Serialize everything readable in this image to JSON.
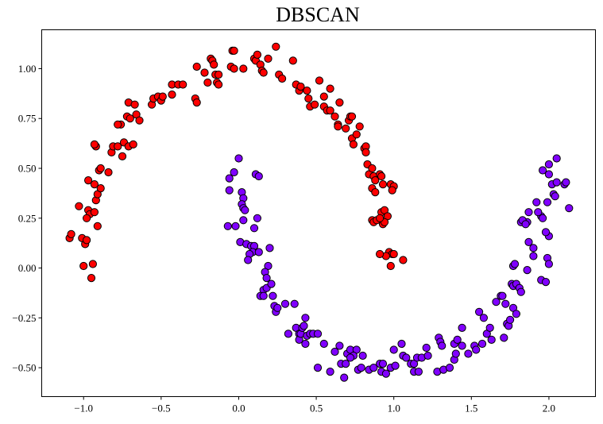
{
  "chart_data": {
    "type": "scatter",
    "title": "DBSCAN",
    "xlabel": "",
    "ylabel": "",
    "xlim": [
      -1.27,
      2.3
    ],
    "ylim": [
      -0.645,
      1.195
    ],
    "grid": false,
    "legend": null,
    "x_ticks": [
      -1.0,
      -0.5,
      0.0,
      0.5,
      1.0,
      1.5,
      2.0
    ],
    "x_tick_labels": [
      "−1.0",
      "−0.5",
      "0.0",
      "0.5",
      "1.0",
      "1.5",
      "2.0"
    ],
    "y_ticks": [
      -0.5,
      -0.25,
      0.0,
      0.25,
      0.5,
      0.75,
      1.0
    ],
    "y_tick_labels": [
      "−0.50",
      "−0.25",
      "0.00",
      "0.25",
      "0.50",
      "0.75",
      "1.00"
    ],
    "colors": {
      "cluster_0": "#ff0000",
      "cluster_1": "#8000ff",
      "edge": "#000000"
    },
    "series": [
      {
        "name": "cluster_0",
        "color": "#ff0000",
        "points": [
          [
            -1.09,
            0.15
          ],
          [
            -1.08,
            0.17
          ],
          [
            -1.03,
            0.31
          ],
          [
            -1.01,
            0.15
          ],
          [
            -0.99,
            0.12
          ],
          [
            -0.98,
            0.14
          ],
          [
            -0.97,
            0.29
          ],
          [
            -0.96,
            0.27
          ],
          [
            -0.98,
            0.25
          ],
          [
            -0.93,
            0.28
          ],
          [
            -0.92,
            0.34
          ],
          [
            -0.91,
            0.37
          ],
          [
            -0.93,
            0.42
          ],
          [
            -0.91,
            0.21
          ],
          [
            -1.0,
            0.01
          ],
          [
            -0.94,
            0.02
          ],
          [
            -0.95,
            -0.05
          ],
          [
            -0.97,
            0.44
          ],
          [
            -0.9,
            0.49
          ],
          [
            -0.89,
            0.5
          ],
          [
            -0.84,
            0.48
          ],
          [
            -0.89,
            0.4
          ],
          [
            -0.92,
            0.61
          ],
          [
            -0.93,
            0.62
          ],
          [
            -0.82,
            0.58
          ],
          [
            -0.81,
            0.61
          ],
          [
            -0.78,
            0.61
          ],
          [
            -0.75,
            0.56
          ],
          [
            -0.74,
            0.63
          ],
          [
            -0.71,
            0.61
          ],
          [
            -0.68,
            0.62
          ],
          [
            -0.76,
            0.72
          ],
          [
            -0.72,
            0.76
          ],
          [
            -0.7,
            0.75
          ],
          [
            -0.66,
            0.77
          ],
          [
            -0.78,
            0.72
          ],
          [
            -0.71,
            0.83
          ],
          [
            -0.67,
            0.82
          ],
          [
            -0.64,
            0.74
          ],
          [
            -0.56,
            0.82
          ],
          [
            -0.55,
            0.85
          ],
          [
            -0.52,
            0.86
          ],
          [
            -0.5,
            0.84
          ],
          [
            -0.49,
            0.86
          ],
          [
            -0.43,
            0.92
          ],
          [
            -0.43,
            0.87
          ],
          [
            -0.39,
            0.92
          ],
          [
            -0.36,
            0.92
          ],
          [
            -0.28,
            0.85
          ],
          [
            -0.27,
            0.83
          ],
          [
            -0.27,
            1.01
          ],
          [
            -0.22,
            0.98
          ],
          [
            -0.2,
            0.93
          ],
          [
            -0.18,
            1.05
          ],
          [
            -0.17,
            1.04
          ],
          [
            -0.16,
            1.02
          ],
          [
            -0.15,
            0.97
          ],
          [
            -0.14,
            0.93
          ],
          [
            -0.13,
            0.97
          ],
          [
            -0.13,
            0.92
          ],
          [
            -0.05,
            1.01
          ],
          [
            -0.03,
            1.0
          ],
          [
            -0.04,
            1.09
          ],
          [
            -0.03,
            1.09
          ],
          [
            0.03,
            1.0
          ],
          [
            0.1,
            1.05
          ],
          [
            0.11,
            1.04
          ],
          [
            0.12,
            1.07
          ],
          [
            0.14,
            1.02
          ],
          [
            0.15,
            0.99
          ],
          [
            0.16,
            0.98
          ],
          [
            0.19,
            1.05
          ],
          [
            0.24,
            1.11
          ],
          [
            0.26,
            0.97
          ],
          [
            0.28,
            0.95
          ],
          [
            0.35,
            1.04
          ],
          [
            0.37,
            0.92
          ],
          [
            0.39,
            0.89
          ],
          [
            0.4,
            0.91
          ],
          [
            0.44,
            0.89
          ],
          [
            0.45,
            0.85
          ],
          [
            0.46,
            0.81
          ],
          [
            0.49,
            0.82
          ],
          [
            0.52,
            0.94
          ],
          [
            0.55,
            0.81
          ],
          [
            0.55,
            0.86
          ],
          [
            0.57,
            0.79
          ],
          [
            0.59,
            0.79
          ],
          [
            0.59,
            0.9
          ],
          [
            0.62,
            0.76
          ],
          [
            0.64,
            0.72
          ],
          [
            0.64,
            0.71
          ],
          [
            0.65,
            0.83
          ],
          [
            0.69,
            0.7
          ],
          [
            0.71,
            0.74
          ],
          [
            0.72,
            0.76
          ],
          [
            0.73,
            0.76
          ],
          [
            0.73,
            0.65
          ],
          [
            0.74,
            0.62
          ],
          [
            0.76,
            0.67
          ],
          [
            0.78,
            0.71
          ],
          [
            0.81,
            0.6
          ],
          [
            0.82,
            0.61
          ],
          [
            0.82,
            0.58
          ],
          [
            0.83,
            0.52
          ],
          [
            0.84,
            0.47
          ],
          [
            0.86,
            0.5
          ],
          [
            0.87,
            0.46
          ],
          [
            0.86,
            0.4
          ],
          [
            0.88,
            0.38
          ],
          [
            0.88,
            0.44
          ],
          [
            0.91,
            0.47
          ],
          [
            0.92,
            0.46
          ],
          [
            0.93,
            0.42
          ],
          [
            0.92,
            0.28
          ],
          [
            0.93,
            0.22
          ],
          [
            0.94,
            0.29
          ],
          [
            0.96,
            0.26
          ],
          [
            0.94,
            0.23
          ],
          [
            0.98,
            0.42
          ],
          [
            1.0,
            0.41
          ],
          [
            0.99,
            0.39
          ],
          [
            0.86,
            0.24
          ],
          [
            0.87,
            0.23
          ],
          [
            0.89,
            0.24
          ],
          [
            0.91,
            0.25
          ],
          [
            0.97,
            0.08
          ],
          [
            0.99,
            0.07
          ],
          [
            1.0,
            0.07
          ],
          [
            0.98,
            0.01
          ],
          [
            1.06,
            0.04
          ],
          [
            0.95,
            0.06
          ],
          [
            0.91,
            0.07
          ]
        ]
      },
      {
        "name": "cluster_1",
        "color": "#8000ff",
        "points": [
          [
            0.0,
            0.55
          ],
          [
            -0.03,
            0.48
          ],
          [
            -0.06,
            0.45
          ],
          [
            0.11,
            0.47
          ],
          [
            0.13,
            0.46
          ],
          [
            -0.06,
            0.39
          ],
          [
            0.02,
            0.38
          ],
          [
            0.03,
            0.35
          ],
          [
            0.02,
            0.32
          ],
          [
            0.03,
            0.3
          ],
          [
            0.04,
            0.29
          ],
          [
            0.03,
            0.24
          ],
          [
            -0.07,
            0.21
          ],
          [
            -0.02,
            0.21
          ],
          [
            0.1,
            0.2
          ],
          [
            0.12,
            0.25
          ],
          [
            0.01,
            0.13
          ],
          [
            0.05,
            0.12
          ],
          [
            0.08,
            0.11
          ],
          [
            0.1,
            0.11
          ],
          [
            0.09,
            0.08
          ],
          [
            0.07,
            0.07
          ],
          [
            0.13,
            0.08
          ],
          [
            0.06,
            0.04
          ],
          [
            0.19,
            0.01
          ],
          [
            0.2,
            0.1
          ],
          [
            0.17,
            -0.02
          ],
          [
            0.18,
            -0.05
          ],
          [
            0.16,
            -0.11
          ],
          [
            0.14,
            -0.14
          ],
          [
            0.18,
            -0.1
          ],
          [
            0.21,
            -0.08
          ],
          [
            0.22,
            -0.14
          ],
          [
            0.16,
            -0.14
          ],
          [
            0.23,
            -0.19
          ],
          [
            0.24,
            -0.22
          ],
          [
            0.25,
            -0.2
          ],
          [
            0.3,
            -0.18
          ],
          [
            0.36,
            -0.18
          ],
          [
            0.32,
            -0.33
          ],
          [
            0.37,
            -0.3
          ],
          [
            0.39,
            -0.33
          ],
          [
            0.39,
            -0.36
          ],
          [
            0.4,
            -0.33
          ],
          [
            0.41,
            -0.3
          ],
          [
            0.42,
            -0.29
          ],
          [
            0.43,
            -0.25
          ],
          [
            0.43,
            -0.38
          ],
          [
            0.44,
            -0.34
          ],
          [
            0.46,
            -0.33
          ],
          [
            0.48,
            -0.33
          ],
          [
            0.51,
            -0.33
          ],
          [
            0.55,
            -0.38
          ],
          [
            0.51,
            -0.5
          ],
          [
            0.59,
            -0.52
          ],
          [
            0.65,
            -0.39
          ],
          [
            0.62,
            -0.42
          ],
          [
            0.66,
            -0.48
          ],
          [
            0.69,
            -0.48
          ],
          [
            0.7,
            -0.43
          ],
          [
            0.72,
            -0.41
          ],
          [
            0.68,
            -0.55
          ],
          [
            0.76,
            -0.41
          ],
          [
            0.8,
            -0.44
          ],
          [
            0.74,
            -0.44
          ],
          [
            0.72,
            -0.45
          ],
          [
            0.77,
            -0.51
          ],
          [
            0.79,
            -0.5
          ],
          [
            0.84,
            -0.51
          ],
          [
            0.87,
            -0.5
          ],
          [
            0.91,
            -0.48
          ],
          [
            0.92,
            -0.52
          ],
          [
            0.93,
            -0.48
          ],
          [
            0.95,
            -0.53
          ],
          [
            0.98,
            -0.5
          ],
          [
            1.0,
            -0.41
          ],
          [
            1.01,
            -0.49
          ],
          [
            1.05,
            -0.38
          ],
          [
            1.06,
            -0.44
          ],
          [
            1.08,
            -0.45
          ],
          [
            1.11,
            -0.48
          ],
          [
            1.13,
            -0.52
          ],
          [
            1.13,
            -0.48
          ],
          [
            1.15,
            -0.45
          ],
          [
            1.16,
            -0.52
          ],
          [
            1.18,
            -0.45
          ],
          [
            1.21,
            -0.4
          ],
          [
            1.22,
            -0.44
          ],
          [
            1.28,
            -0.52
          ],
          [
            1.29,
            -0.35
          ],
          [
            1.3,
            -0.37
          ],
          [
            1.31,
            -0.39
          ],
          [
            1.32,
            -0.51
          ],
          [
            1.36,
            -0.5
          ],
          [
            1.39,
            -0.46
          ],
          [
            1.39,
            -0.38
          ],
          [
            1.4,
            -0.43
          ],
          [
            1.41,
            -0.36
          ],
          [
            1.44,
            -0.39
          ],
          [
            1.44,
            -0.3
          ],
          [
            1.48,
            -0.43
          ],
          [
            1.52,
            -0.39
          ],
          [
            1.53,
            -0.41
          ],
          [
            1.55,
            -0.22
          ],
          [
            1.57,
            -0.38
          ],
          [
            1.58,
            -0.25
          ],
          [
            1.6,
            -0.33
          ],
          [
            1.62,
            -0.3
          ],
          [
            1.63,
            -0.36
          ],
          [
            1.66,
            -0.17
          ],
          [
            1.69,
            -0.14
          ],
          [
            1.7,
            -0.14
          ],
          [
            1.71,
            -0.35
          ],
          [
            1.73,
            -0.28
          ],
          [
            1.74,
            -0.29
          ],
          [
            1.75,
            -0.26
          ],
          [
            1.77,
            -0.2
          ],
          [
            1.79,
            -0.23
          ],
          [
            1.72,
            -0.18
          ],
          [
            1.76,
            -0.08
          ],
          [
            1.77,
            -0.09
          ],
          [
            1.77,
            0.01
          ],
          [
            1.78,
            0.02
          ],
          [
            1.79,
            -0.08
          ],
          [
            1.81,
            -0.1
          ],
          [
            1.82,
            -0.12
          ],
          [
            1.86,
            -0.01
          ],
          [
            1.87,
            0.13
          ],
          [
            1.9,
            0.06
          ],
          [
            1.9,
            0.1
          ],
          [
            1.95,
            -0.06
          ],
          [
            1.98,
            -0.07
          ],
          [
            1.99,
            0.05
          ],
          [
            2.0,
            0.02
          ],
          [
            2.0,
            0.16
          ],
          [
            1.98,
            0.18
          ],
          [
            1.95,
            0.26
          ],
          [
            1.96,
            0.25
          ],
          [
            1.86,
            0.23
          ],
          [
            1.92,
            0.33
          ],
          [
            1.99,
            0.33
          ],
          [
            2.03,
            0.37
          ],
          [
            2.04,
            0.36
          ],
          [
            2.02,
            0.42
          ],
          [
            2.05,
            0.43
          ],
          [
            2.1,
            0.42
          ],
          [
            2.11,
            0.43
          ],
          [
            2.13,
            0.3
          ],
          [
            1.96,
            0.49
          ],
          [
            2.0,
            0.52
          ],
          [
            2.0,
            0.47
          ],
          [
            1.82,
            0.23
          ],
          [
            1.83,
            0.24
          ],
          [
            1.85,
            0.22
          ],
          [
            1.87,
            0.28
          ],
          [
            1.93,
            0.28
          ],
          [
            2.05,
            0.55
          ]
        ]
      }
    ]
  }
}
